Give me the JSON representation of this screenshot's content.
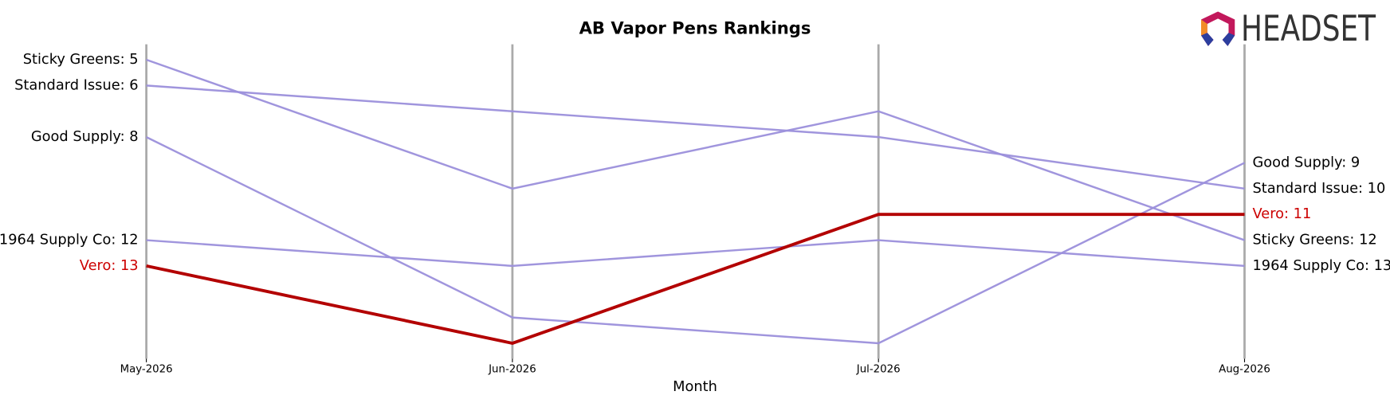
{
  "chart_data": {
    "type": "bump",
    "title": "AB Vapor Pens Rankings",
    "x_label": "Month",
    "logo": "HEADSET",
    "categories": [
      "May-2026",
      "Jun-2026",
      "Jul-2026",
      "Aug-2026"
    ],
    "ylim": [
      16.6,
      4.4
    ],
    "series": [
      {
        "name": "Sticky Greens",
        "color": "#9b8fdb",
        "label_color": "#000000",
        "values": [
          5,
          10,
          7,
          12
        ],
        "value_labels": [
          "Sticky Greens: 5",
          null,
          null,
          "Sticky Greens: 12"
        ]
      },
      {
        "name": "Standard Issue",
        "color": "#9b8fdb",
        "label_color": "#000000",
        "values": [
          6,
          7,
          8,
          10
        ],
        "value_labels": [
          "Standard Issue: 6",
          null,
          null,
          "Standard Issue: 10"
        ]
      },
      {
        "name": "Good Supply",
        "color": "#9b8fdb",
        "label_color": "#000000",
        "values": [
          8,
          15,
          16,
          9
        ],
        "value_labels": [
          "Good Supply: 8",
          null,
          null,
          "Good Supply: 9"
        ]
      },
      {
        "name": "1964 Supply Co",
        "color": "#9b8fdb",
        "label_color": "#000000",
        "values": [
          12,
          13,
          12,
          13
        ],
        "value_labels": [
          "1964 Supply Co: 12",
          null,
          null,
          "1964 Supply Co: 13"
        ]
      },
      {
        "name": "Vero",
        "color": "#b30000",
        "label_color": "#cc0000",
        "values": [
          13,
          16,
          11,
          11
        ],
        "value_labels": [
          "Vero: 13",
          null,
          null,
          "Vero: 11"
        ],
        "highlight": true
      }
    ]
  }
}
